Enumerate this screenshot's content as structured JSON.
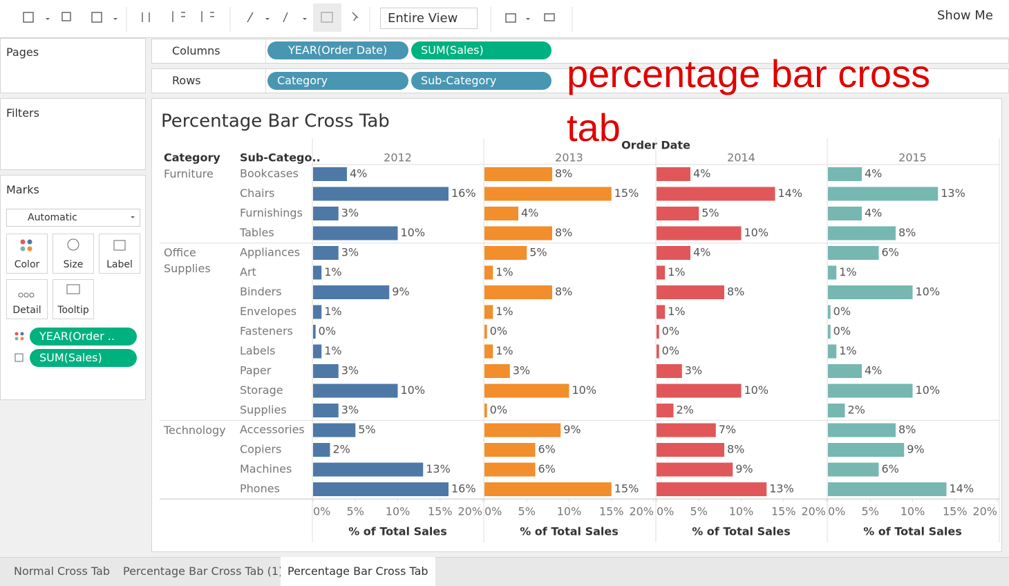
{
  "toolbar": {
    "view": "Entire View",
    "show_me": "Show Me"
  },
  "shelves": {
    "pages": "Pages",
    "filters": "Filters",
    "columns": {
      "label": "Columns",
      "pills": [
        "YEAR(Order Date)",
        "SUM(Sales)"
      ]
    },
    "rows": {
      "label": "Rows",
      "pills": [
        "Category",
        "Sub-Category"
      ]
    }
  },
  "marks": {
    "title": "Marks",
    "type": "Automatic",
    "buttons": [
      "Color",
      "Size",
      "Label",
      "Detail",
      "Tooltip"
    ],
    "pills": [
      "YEAR(Order ..",
      "SUM(Sales)"
    ]
  },
  "annotation": "percentage bar cross tab",
  "tabs": {
    "items": [
      "Normal Cross Tab",
      "Percentage Bar Cross Tab (1)",
      "Percentage Bar Cross Tab"
    ],
    "active": 2
  },
  "chart_data": {
    "type": "bar",
    "title": "Percentage Bar Cross Tab",
    "row_headers": [
      "Category",
      "Sub-Catego.."
    ],
    "column_header": "Order Date",
    "xlabel": "% of Total Sales",
    "groups": [
      {
        "name": "Furniture",
        "categories": [
          "Bookcases",
          "Chairs",
          "Furnishings",
          "Tables"
        ]
      },
      {
        "name": "Office Supplies",
        "categories": [
          "Appliances",
          "Art",
          "Binders",
          "Envelopes",
          "Fasteners",
          "Labels",
          "Paper",
          "Storage",
          "Supplies"
        ]
      },
      {
        "name": "Technology",
        "categories": [
          "Accessories",
          "Copiers",
          "Machines",
          "Phones"
        ]
      }
    ],
    "series": [
      {
        "name": "2012",
        "color": "#4e79a7",
        "values": [
          4,
          16,
          3,
          10,
          3,
          1,
          9,
          1,
          0.3,
          1,
          3,
          10,
          3,
          5,
          2,
          13,
          16
        ],
        "value_labels": [
          "4%",
          "16%",
          "3%",
          "10%",
          "3%",
          "1%",
          "9%",
          "1%",
          "0%",
          "1%",
          "3%",
          "10%",
          "3%",
          "5%",
          "2%",
          "13%",
          "16%"
        ]
      },
      {
        "name": "2013",
        "color": "#f28e2b",
        "values": [
          8,
          15,
          4,
          8,
          5,
          1,
          8,
          1,
          0.3,
          1,
          3,
          10,
          0.3,
          9,
          6,
          6,
          15
        ],
        "value_labels": [
          "8%",
          "15%",
          "4%",
          "8%",
          "5%",
          "1%",
          "8%",
          "1%",
          "0%",
          "1%",
          "3%",
          "10%",
          "0%",
          "9%",
          "6%",
          "6%",
          "15%"
        ]
      },
      {
        "name": "2014",
        "color": "#e15759",
        "values": [
          4,
          14,
          5,
          10,
          4,
          1,
          8,
          1,
          0.3,
          0.3,
          3,
          10,
          2,
          7,
          8,
          9,
          13
        ],
        "value_labels": [
          "4%",
          "14%",
          "5%",
          "10%",
          "4%",
          "1%",
          "8%",
          "1%",
          "0%",
          "0%",
          "3%",
          "10%",
          "2%",
          "7%",
          "8%",
          "9%",
          "13%"
        ]
      },
      {
        "name": "2015",
        "color": "#76b7b2",
        "values": [
          4,
          13,
          4,
          8,
          6,
          1,
          10,
          0.3,
          0.3,
          1,
          4,
          10,
          2,
          8,
          9,
          6,
          14
        ],
        "value_labels": [
          "4%",
          "13%",
          "4%",
          "8%",
          "6%",
          "1%",
          "10%",
          "0%",
          "0%",
          "1%",
          "4%",
          "10%",
          "2%",
          "8%",
          "9%",
          "6%",
          "14%"
        ]
      }
    ],
    "xlim": [
      0,
      20
    ],
    "xticks": [
      {
        "value": 0,
        "label": "0%"
      },
      {
        "value": 5,
        "label": "5%"
      },
      {
        "value": 10,
        "label": "10%"
      },
      {
        "value": 15,
        "label": "15%"
      },
      {
        "value": 20,
        "label": "20%"
      }
    ]
  }
}
